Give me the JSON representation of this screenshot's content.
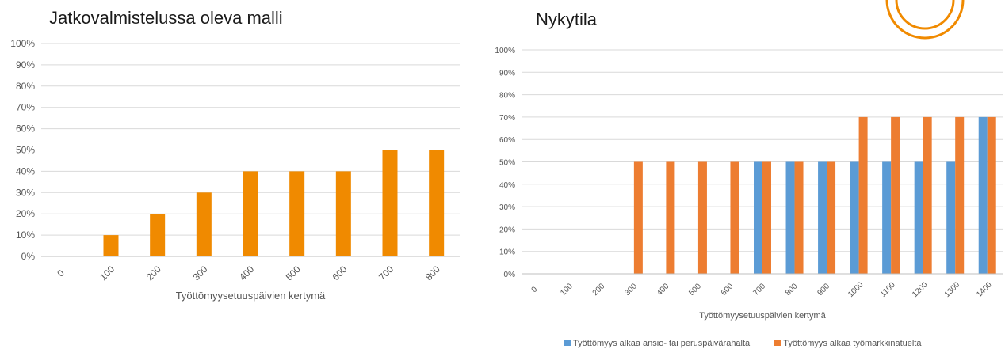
{
  "chart_data": [
    {
      "type": "bar",
      "title": "Jatkovalmistelussa oleva malli",
      "xlabel": "Työttömyysetuuspäivien kertymä",
      "ylabel": "",
      "categories": [
        "0",
        "100",
        "200",
        "300",
        "400",
        "500",
        "600",
        "700",
        "800"
      ],
      "series": [
        {
          "values": [
            0,
            10,
            20,
            30,
            40,
            40,
            40,
            50,
            50
          ],
          "color": "#f08a00"
        }
      ],
      "ylim": [
        0,
        100
      ],
      "yticks": [
        "0%",
        "10%",
        "20%",
        "30%",
        "40%",
        "50%",
        "60%",
        "70%",
        "80%",
        "90%",
        "100%"
      ],
      "grid": true
    },
    {
      "type": "bar",
      "title": "Nykytila",
      "xlabel": "Työttömyysetuuspäivien kertymä",
      "ylabel": "",
      "categories": [
        "0",
        "100",
        "200",
        "300",
        "400",
        "500",
        "600",
        "700",
        "800",
        "900",
        "1000",
        "1100",
        "1200",
        "1300",
        "1400"
      ],
      "series": [
        {
          "name": "Työttömyys alkaa ansio- tai peruspäivärahalta",
          "values": [
            0,
            0,
            0,
            0,
            0,
            0,
            0,
            50,
            50,
            50,
            50,
            50,
            50,
            50,
            70
          ],
          "color": "#5b9bd5"
        },
        {
          "name": "Työttömyys alkaa työmarkkinatuelta",
          "values": [
            0,
            0,
            0,
            50,
            50,
            50,
            50,
            50,
            50,
            50,
            70,
            70,
            70,
            70,
            70
          ],
          "color": "#ed7d31"
        }
      ],
      "ylim": [
        0,
        100
      ],
      "yticks": [
        "0%",
        "10%",
        "20%",
        "30%",
        "40%",
        "50%",
        "60%",
        "70%",
        "80%",
        "90%",
        "100%"
      ],
      "legend": "bottom",
      "grid": true
    }
  ],
  "logo": {
    "color": "#f08a00",
    "name": "rings-logo"
  }
}
